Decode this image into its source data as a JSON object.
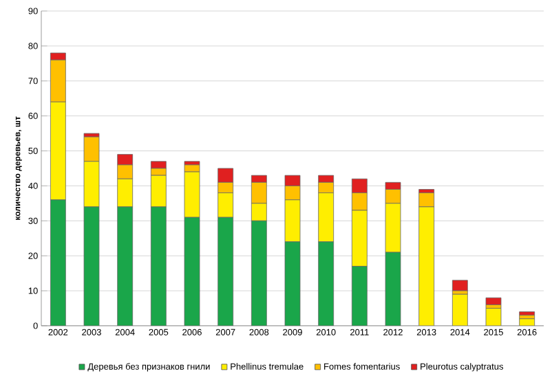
{
  "chart_data": {
    "type": "bar",
    "stacked": true,
    "ylabel": "количество деревьев, шт",
    "categories": [
      "2002",
      "2003",
      "2004",
      "2005",
      "2006",
      "2007",
      "2008",
      "2009",
      "2010",
      "2011",
      "2012",
      "2013",
      "2014",
      "2015",
      "2016"
    ],
    "series": [
      {
        "name": "Деревья без признаков гнили",
        "color": "#1aa64a",
        "values": [
          36,
          34,
          34,
          34,
          31,
          31,
          30,
          24,
          24,
          17,
          21,
          0,
          0,
          0,
          0
        ]
      },
      {
        "name": "Phellinus tremulae",
        "color": "#ffee00",
        "values": [
          28,
          13,
          8,
          9,
          13,
          7,
          5,
          12,
          14,
          16,
          14,
          34,
          9,
          5,
          2
        ]
      },
      {
        "name": "Fomes fomentarius",
        "color": "#ffc000",
        "values": [
          12,
          7,
          4,
          2,
          2,
          3,
          6,
          4,
          3,
          5,
          4,
          4,
          1,
          1,
          1
        ]
      },
      {
        "name": "Pleurotus calyptratus",
        "color": "#e02020",
        "values": [
          2,
          1,
          3,
          2,
          1,
          4,
          2,
          3,
          2,
          4,
          2,
          1,
          3,
          2,
          1
        ]
      }
    ],
    "ylim": [
      0,
      90
    ],
    "yticks": [
      0,
      10,
      20,
      30,
      40,
      50,
      60,
      70,
      80,
      90
    ],
    "grid": "y",
    "legend": "bottom"
  }
}
